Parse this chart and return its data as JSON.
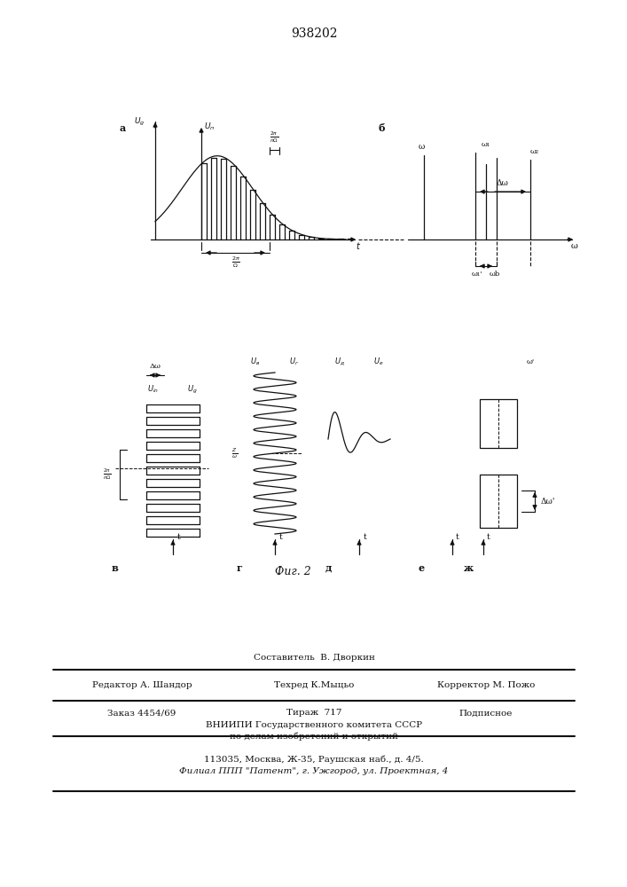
{
  "title": "938202",
  "fig_caption": "Фиг. 2",
  "label_a": "а",
  "label_b": "б",
  "label_v": "в",
  "label_g": "г",
  "label_d": "д",
  "label_e": "е",
  "label_zh": "ж",
  "footer_line1": "Составитель  В. Дворкин",
  "footer_line2": "Редактор А. Шандор",
  "footer_line2b": "Техред К.Мыцьо",
  "footer_line2c": "Корректор М. Пожо",
  "footer_line3a": "Заказ 4454/69",
  "footer_line3b": "Тираж  717",
  "footer_line3c": "Подписное",
  "footer_line4": "ВНИИПИ Государственного комитета СССР",
  "footer_line5": "по делам изобретений и открытий",
  "footer_line6": "113035, Москва, Ж-35, Раушская наб., д. 4/5.",
  "footer_line7": "Филиал ППП \"Патент\", г. Ужгород, ул. Проектная, 4"
}
